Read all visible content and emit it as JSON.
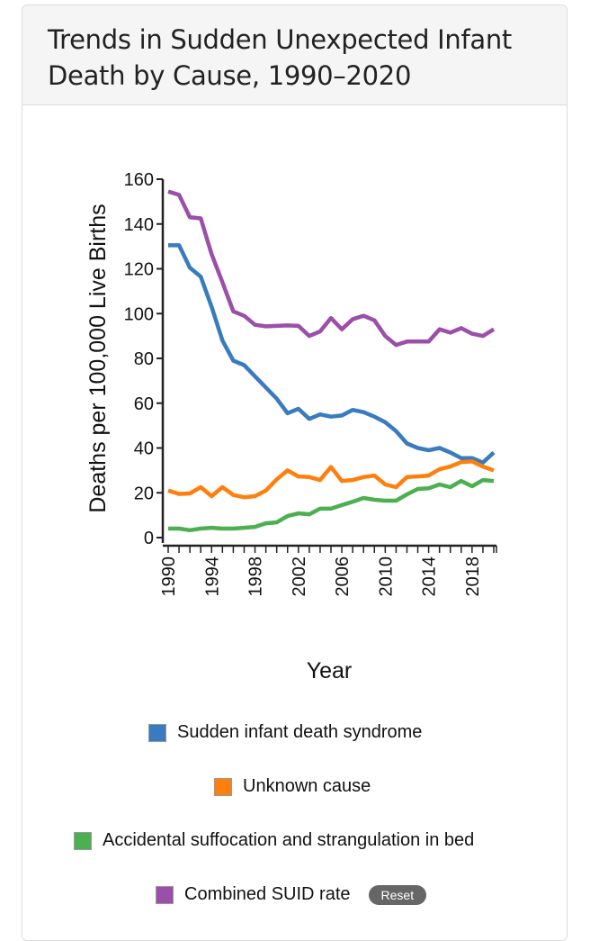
{
  "header": {
    "title": "Trends in Sudden Unexpected Infant Death by Cause, 1990–2020"
  },
  "chart_data": {
    "type": "line",
    "title": "Trends in Sudden Unexpected Infant Death by Cause, 1990–2020",
    "xlabel": "Year",
    "ylabel": "Deaths per 100,000 Live Births",
    "ylim": [
      0,
      160
    ],
    "xlim": [
      1990,
      2020
    ],
    "yticks": [
      0,
      20,
      40,
      60,
      80,
      100,
      120,
      140,
      160
    ],
    "xtick_labels": [
      "1990",
      "1994",
      "1998",
      "2002",
      "2006",
      "2010",
      "2014",
      "2018"
    ],
    "grid": false,
    "legend_position": "bottom",
    "x": [
      1990,
      1991,
      1992,
      1993,
      1994,
      1995,
      1996,
      1997,
      1998,
      1999,
      2000,
      2001,
      2002,
      2003,
      2004,
      2005,
      2006,
      2007,
      2008,
      2009,
      2010,
      2011,
      2012,
      2013,
      2014,
      2015,
      2016,
      2017,
      2018,
      2019,
      2020
    ],
    "series": [
      {
        "name": "Sudden infant death syndrome",
        "color": "#3a7bbf",
        "values": [
          130.5,
          130.5,
          120.5,
          116.5,
          103,
          88,
          79,
          77,
          72,
          67,
          62,
          55.5,
          57.5,
          53,
          55,
          54,
          54.5,
          57,
          56,
          54,
          51.5,
          47.5,
          42,
          40,
          39,
          40,
          38,
          35.5,
          35.5,
          33.5,
          38
        ]
      },
      {
        "name": "Unknown cause",
        "color": "#ff7f0e",
        "values": [
          21,
          19.5,
          19.7,
          22.5,
          18.5,
          22.5,
          19,
          18,
          18.5,
          21,
          26,
          30,
          27.3,
          27,
          25.7,
          31.5,
          25.3,
          25.7,
          27,
          27.7,
          23.7,
          22.5,
          27,
          27.3,
          27.7,
          30.5,
          31.7,
          33.7,
          34,
          31.7,
          30
        ]
      },
      {
        "name": "Accidental suffocation and strangulation in bed",
        "color": "#4caf50",
        "values": [
          4,
          4,
          3.3,
          4,
          4.4,
          4,
          4,
          4.4,
          4.8,
          6.4,
          6.8,
          9.6,
          10.8,
          10.4,
          12.9,
          12.9,
          14.5,
          16,
          17.7,
          16.9,
          16.5,
          16.5,
          19.3,
          21.7,
          22,
          23.7,
          22.5,
          25.3,
          22.9,
          25.7,
          25.3
        ]
      },
      {
        "name": "Combined SUID rate",
        "color": "#9b4fa8",
        "values": [
          154.5,
          153,
          143,
          142.5,
          126.5,
          114,
          101,
          99,
          95,
          94.3,
          94.5,
          94.7,
          94.5,
          90,
          92,
          98,
          93,
          97.5,
          99,
          97,
          90,
          86,
          87.5,
          87.5,
          87.5,
          93,
          91.5,
          93.5,
          91,
          90,
          93
        ]
      }
    ]
  },
  "legend": {
    "items": [
      {
        "label": "Sudden infant death syndrome",
        "color": "#3a7bbf"
      },
      {
        "label": "Unknown cause",
        "color": "#ff7f0e"
      },
      {
        "label": "Accidental suffocation and strangulation in bed",
        "color": "#4caf50"
      },
      {
        "label": "Combined SUID rate",
        "color": "#9b4fa8"
      }
    ],
    "reset_label": "Reset"
  }
}
